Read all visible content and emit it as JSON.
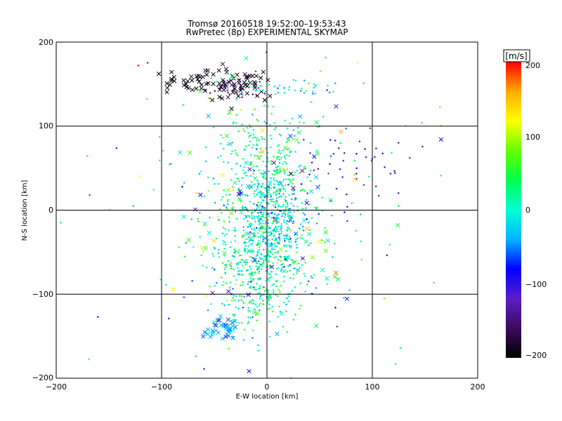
{
  "chart_data": {
    "type": "scatter",
    "title": "Tromsø 20160518 19:52:00–19:53:43",
    "subtitle": "RwPretec (8p) EXPERIMENTAL SKYMAP",
    "xlabel": "E-W location [km]",
    "ylabel": "N-S location [km]",
    "xlim": [
      -200,
      200
    ],
    "ylim": [
      -200,
      200
    ],
    "x_ticks": [
      "−200",
      "−100",
      "0",
      "100",
      "200"
    ],
    "y_ticks": [
      "−200",
      "−100",
      "0",
      "100",
      "200"
    ],
    "grid": true,
    "colorbar": {
      "unit": "[m/s]",
      "range": [
        -200,
        200
      ],
      "ticks": [
        "200",
        "100",
        "0",
        "−100",
        "−200"
      ],
      "colormap": [
        "#000000",
        "#3c0a5a",
        "#5a1ec8",
        "#0000ff",
        "#00b4ff",
        "#00ffd2",
        "#00ff50",
        "#64ff00",
        "#ffff00",
        "#ffaa00",
        "#ff0000"
      ]
    },
    "markers": {
      "dot": "+",
      "cross": "x"
    },
    "clusters": [
      {
        "name": "north-west black arc",
        "x": -70,
        "y": 152,
        "sx": 18,
        "sy": 7,
        "n": 40,
        "v": -195,
        "vs": 10,
        "mark": "x"
      },
      {
        "name": "north black cluster",
        "x": -25,
        "y": 150,
        "sx": 14,
        "sy": 9,
        "n": 55,
        "v": -190,
        "vs": 15,
        "mark": "x"
      },
      {
        "name": "north purple band",
        "x": -30,
        "y": 145,
        "sx": 14,
        "sy": 6,
        "n": 25,
        "v": -150,
        "vs": 15,
        "mark": "dot"
      },
      {
        "name": "north cyan band",
        "x": 20,
        "y": 145,
        "sx": 22,
        "sy": 5,
        "n": 40,
        "v": -10,
        "vs": 30,
        "mark": "dot"
      },
      {
        "name": "north-east blue streak",
        "x": 75,
        "y": 55,
        "sx": 25,
        "sy": 25,
        "n": 45,
        "v": -110,
        "vs": 25,
        "mark": "dot"
      },
      {
        "name": "central green column",
        "x": -5,
        "y": 20,
        "sx": 22,
        "sy": 50,
        "n": 500,
        "v": 15,
        "vs": 30,
        "mark": "dot"
      },
      {
        "name": "central cyan core",
        "x": 8,
        "y": -15,
        "sx": 15,
        "sy": 25,
        "n": 200,
        "v": -30,
        "vs": 20,
        "mark": "dot"
      },
      {
        "name": "southern green column",
        "x": -10,
        "y": -75,
        "sx": 22,
        "sy": 30,
        "n": 350,
        "v": 10,
        "vs": 35,
        "mark": "dot"
      },
      {
        "name": "south-west cyan clump",
        "x": -40,
        "y": -140,
        "sx": 8,
        "sy": 8,
        "n": 40,
        "v": -40,
        "vs": 15,
        "mark": "x"
      },
      {
        "name": "scattered crosses",
        "x": 0,
        "y": 0,
        "sx": 50,
        "sy": 70,
        "n": 120,
        "v": 0,
        "vs": 80,
        "mark": "x"
      },
      {
        "name": "sparse background",
        "x": 0,
        "y": 0,
        "sx": 70,
        "sy": 90,
        "n": 200,
        "v": 0,
        "vs": 60,
        "mark": "dot"
      }
    ]
  }
}
